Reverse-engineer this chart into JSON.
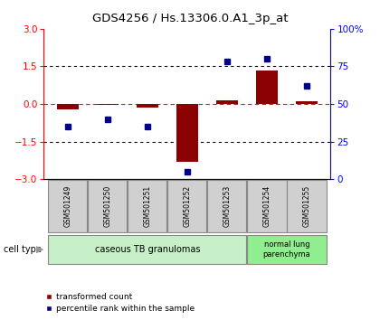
{
  "title": "GDS4256 / Hs.13306.0.A1_3p_at",
  "samples": [
    "GSM501249",
    "GSM501250",
    "GSM501251",
    "GSM501252",
    "GSM501253",
    "GSM501254",
    "GSM501255"
  ],
  "transformed_count": [
    -0.2,
    -0.05,
    -0.15,
    -2.3,
    0.15,
    1.35,
    0.12
  ],
  "percentile_rank": [
    35,
    40,
    35,
    5,
    78,
    80,
    62
  ],
  "left_ylim": [
    -3,
    3
  ],
  "right_ylim": [
    0,
    100
  ],
  "left_yticks": [
    -3,
    -1.5,
    0,
    1.5,
    3
  ],
  "right_yticks": [
    0,
    25,
    50,
    75,
    100
  ],
  "right_yticklabels": [
    "0",
    "25",
    "50",
    "75",
    "100%"
  ],
  "bar_color": "#8B0000",
  "dot_color": "#00008B",
  "group1_label": "caseous TB granulomas",
  "group2_label": "normal lung\nparenchyma",
  "group1_color": "#c8f0c8",
  "group2_color": "#90ee90",
  "legend_red_label": "transformed count",
  "legend_blue_label": "percentile rank within the sample",
  "cell_type_label": "cell type"
}
